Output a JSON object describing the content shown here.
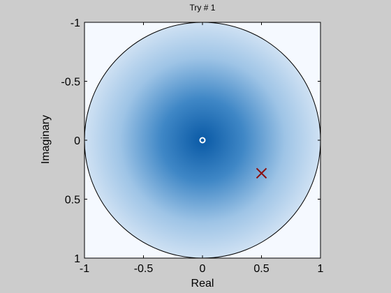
{
  "chart_data": {
    "type": "scatter",
    "title": "Try # 1",
    "xlabel": "Real",
    "ylabel": "Imaginary",
    "xlim": [
      -1,
      1
    ],
    "ylim": [
      -1,
      1
    ],
    "y_axis_direction": "reversed",
    "x_ticks": [
      -1,
      -0.5,
      0,
      0.5,
      1
    ],
    "x_tick_labels": [
      "-1",
      "-0.5",
      "0",
      "0.5",
      "1"
    ],
    "y_ticks": [
      -1,
      -0.5,
      0,
      0.5,
      1
    ],
    "y_tick_labels": [
      "-1",
      "-0.5",
      "0",
      "0.5",
      "1"
    ],
    "unit_circle": {
      "center": [
        0,
        0
      ],
      "radius": 1
    },
    "background_gradient": {
      "center_color": "#0a5aa6",
      "edge_color": "#cfe1f3"
    },
    "markers": [
      {
        "shape": "circle",
        "x": 0,
        "y": 0,
        "color": "#ffffff"
      },
      {
        "shape": "x",
        "x": 0.5,
        "y": 0.28,
        "color": "#8b0e0e"
      }
    ],
    "grid": false
  },
  "colors": {
    "figure_background": "#cccccc",
    "axes_background": "#f5f9ff",
    "circle_edge": "#000000"
  }
}
